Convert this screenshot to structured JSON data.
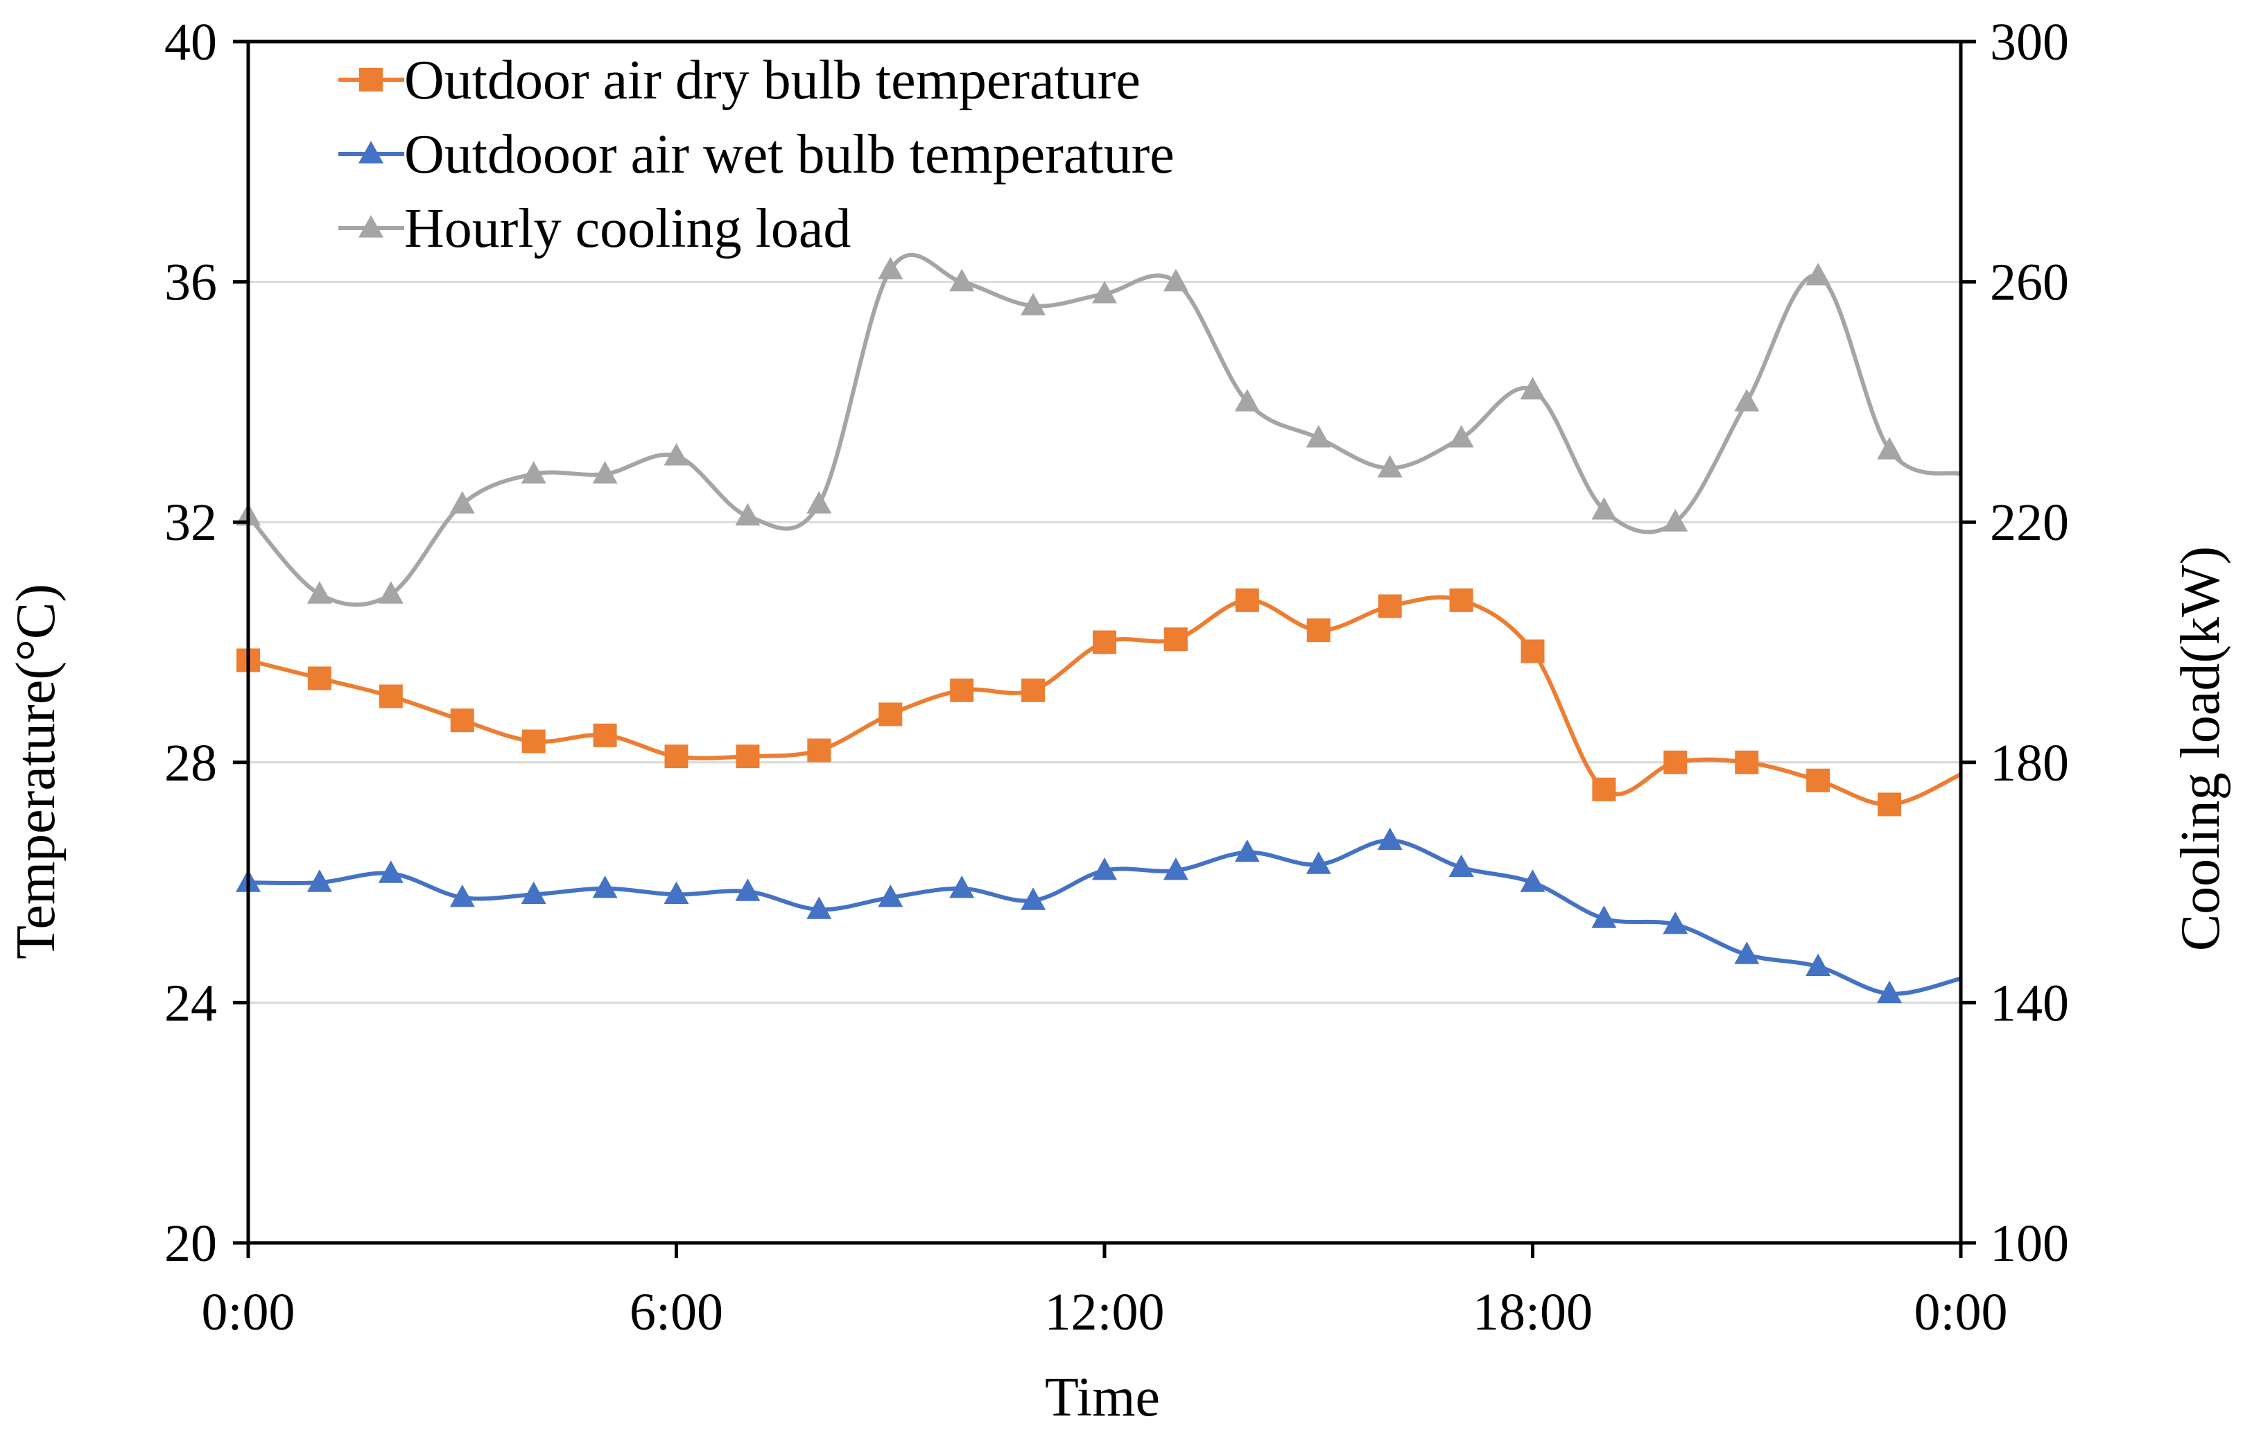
{
  "chart_data": {
    "type": "line",
    "title": "",
    "xlabel": "Time",
    "ylabel": "Temperature(°C)",
    "y2label": "Cooling load(kW)",
    "x_range_hours": [
      0,
      24
    ],
    "ylim": [
      20,
      40
    ],
    "y2lim": [
      100,
      300
    ],
    "grid": true,
    "legend_position": "top-left",
    "x_ticks": [
      {
        "hour": 0,
        "label": "0:00"
      },
      {
        "hour": 6,
        "label": "6:00"
      },
      {
        "hour": 12,
        "label": "12:00"
      },
      {
        "hour": 18,
        "label": "18:00"
      },
      {
        "hour": 24,
        "label": "0:00"
      }
    ],
    "y_ticks": [
      20,
      24,
      28,
      32,
      36,
      40
    ],
    "y2_ticks": [
      100,
      140,
      180,
      220,
      260,
      300
    ],
    "x": [
      0,
      1,
      2,
      3,
      4,
      5,
      6,
      7,
      8,
      9,
      10,
      11,
      12,
      13,
      14,
      15,
      16,
      17,
      18,
      19,
      20,
      21,
      22,
      23,
      24
    ],
    "series": [
      {
        "name": "Outdoor air dry bulb temperature",
        "axis": "left",
        "color": "#ED7D31",
        "marker": "square",
        "values": [
          29.7,
          29.4,
          29.1,
          28.7,
          28.35,
          28.45,
          28.1,
          28.1,
          28.2,
          28.8,
          29.2,
          29.2,
          30.0,
          30.05,
          30.7,
          30.2,
          30.6,
          30.7,
          29.85,
          27.55,
          28.0,
          28.0,
          27.7,
          27.3,
          27.8
        ]
      },
      {
        "name": "Outdooor air wet bulb temperature",
        "axis": "left",
        "color": "#4472C4",
        "marker": "triangle",
        "values": [
          26.0,
          26.0,
          26.15,
          25.75,
          25.8,
          25.9,
          25.8,
          25.85,
          25.55,
          25.75,
          25.9,
          25.7,
          26.2,
          26.2,
          26.5,
          26.3,
          26.7,
          26.25,
          26.0,
          25.4,
          25.3,
          24.8,
          24.6,
          24.15,
          24.4
        ]
      },
      {
        "name": "Hourly cooling load",
        "axis": "right",
        "color": "#A5A5A5",
        "marker": "triangle",
        "values": [
          221,
          208,
          208,
          223,
          228,
          228,
          231,
          221,
          223,
          262,
          260,
          256,
          258,
          260,
          240,
          234,
          229,
          234,
          242,
          222,
          220,
          240,
          261,
          232,
          228
        ]
      }
    ]
  }
}
